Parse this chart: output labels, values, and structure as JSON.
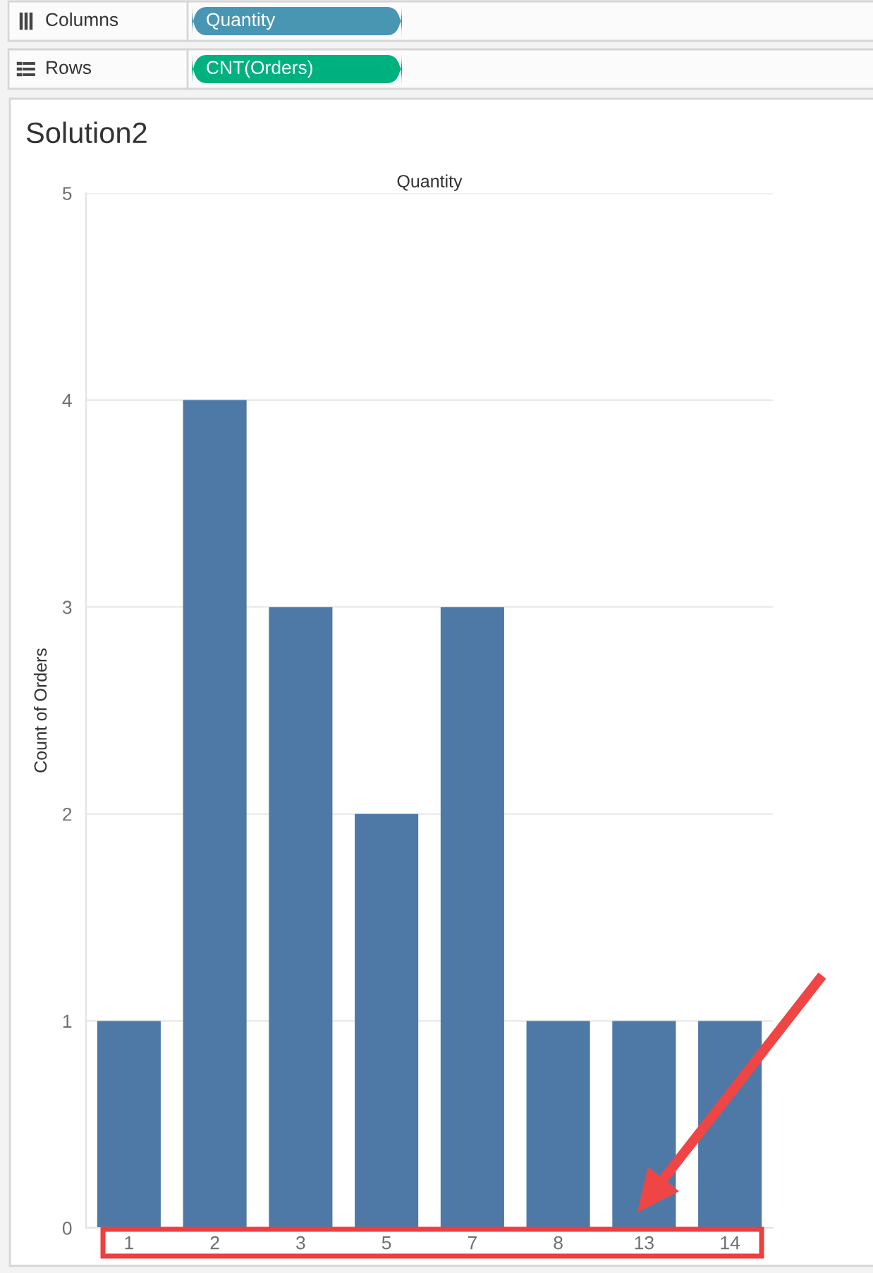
{
  "chart_data": {
    "type": "bar",
    "title": "Solution2",
    "xlabel": "Quantity",
    "ylabel": "Count of Orders",
    "categories": [
      "1",
      "2",
      "3",
      "5",
      "7",
      "8",
      "13",
      "14"
    ],
    "values": [
      1,
      4,
      3,
      2,
      3,
      1,
      1,
      1
    ],
    "color": "#4e79a7",
    "ylim": [
      0,
      5
    ],
    "yticks": [
      0,
      1,
      2,
      3,
      4,
      5
    ],
    "grid": "y",
    "annotations": [
      "Columns",
      "Quantity",
      "Rows",
      "CNT(Orders)"
    ]
  }
}
